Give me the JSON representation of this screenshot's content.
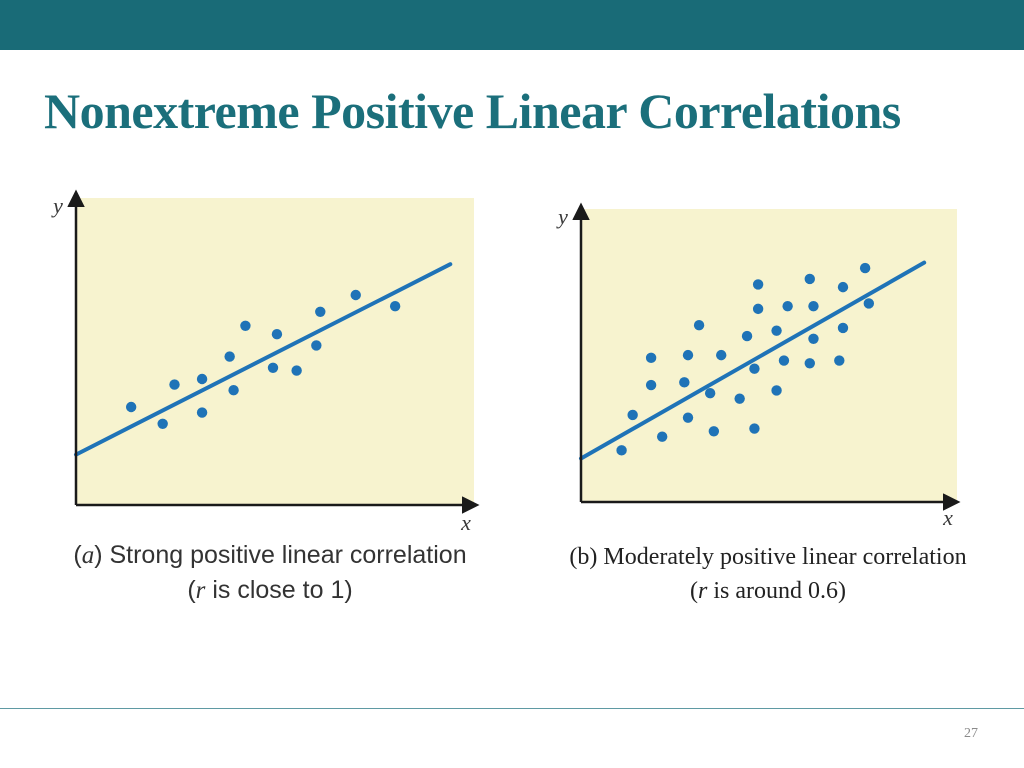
{
  "slide": {
    "title": "Nonextreme Positive Linear Correlations",
    "page_number": "27"
  },
  "colors": {
    "header_bar": "#196b77",
    "title": "#1b6f7b",
    "plot_background": "#f7f3cf",
    "marker": "#1f73b7",
    "axis": "#1a1a1a"
  },
  "chart_data": [
    {
      "type": "scatter",
      "caption": {
        "prefix": "(",
        "letter": "a",
        "mid": ") Strong positive linear correlation",
        "line2_open": "(",
        "var": "r",
        "line2_rest": " is close to 1)"
      },
      "xlabel": "x",
      "ylabel": "y",
      "xlim": [
        0,
        10
      ],
      "ylim": [
        0,
        10
      ],
      "grid": false,
      "trendline": {
        "x1": 0,
        "y1": 1.8,
        "x2": 9.5,
        "y2": 8.6
      },
      "points": [
        {
          "x": 1.4,
          "y": 3.5
        },
        {
          "x": 2.2,
          "y": 2.9
        },
        {
          "x": 2.5,
          "y": 4.3
        },
        {
          "x": 3.2,
          "y": 3.3
        },
        {
          "x": 3.2,
          "y": 4.5
        },
        {
          "x": 3.9,
          "y": 5.3
        },
        {
          "x": 4.0,
          "y": 4.1
        },
        {
          "x": 4.3,
          "y": 6.4
        },
        {
          "x": 5.0,
          "y": 4.9
        },
        {
          "x": 5.1,
          "y": 6.1
        },
        {
          "x": 5.6,
          "y": 4.8
        },
        {
          "x": 6.1,
          "y": 5.7
        },
        {
          "x": 6.2,
          "y": 6.9
        },
        {
          "x": 7.1,
          "y": 7.5
        },
        {
          "x": 8.1,
          "y": 7.1
        }
      ]
    },
    {
      "type": "scatter",
      "caption": {
        "line1": "(b) Moderately positive linear correlation",
        "line2_open": "(",
        "var": "r",
        "line2_rest": " is around 0.6)"
      },
      "xlabel": "x",
      "ylabel": "y",
      "xlim": [
        0,
        10
      ],
      "ylim": [
        0,
        10
      ],
      "grid": false,
      "trendline": {
        "x1": 0,
        "y1": 1.6,
        "x2": 9.3,
        "y2": 8.8
      },
      "points": [
        {
          "x": 1.1,
          "y": 1.9
        },
        {
          "x": 1.4,
          "y": 3.2
        },
        {
          "x": 1.9,
          "y": 4.3
        },
        {
          "x": 1.9,
          "y": 5.3
        },
        {
          "x": 2.2,
          "y": 2.4
        },
        {
          "x": 2.8,
          "y": 4.4
        },
        {
          "x": 2.9,
          "y": 3.1
        },
        {
          "x": 2.9,
          "y": 5.4
        },
        {
          "x": 3.2,
          "y": 6.5
        },
        {
          "x": 3.5,
          "y": 4.0
        },
        {
          "x": 3.6,
          "y": 2.6
        },
        {
          "x": 3.8,
          "y": 5.4
        },
        {
          "x": 4.3,
          "y": 3.8
        },
        {
          "x": 4.5,
          "y": 6.1
        },
        {
          "x": 4.7,
          "y": 2.7
        },
        {
          "x": 4.7,
          "y": 4.9
        },
        {
          "x": 4.8,
          "y": 7.1
        },
        {
          "x": 4.8,
          "y": 8.0
        },
        {
          "x": 5.3,
          "y": 4.1
        },
        {
          "x": 5.3,
          "y": 6.3
        },
        {
          "x": 5.5,
          "y": 5.2
        },
        {
          "x": 5.6,
          "y": 7.2
        },
        {
          "x": 6.2,
          "y": 5.1
        },
        {
          "x": 6.2,
          "y": 8.2
        },
        {
          "x": 6.3,
          "y": 6.0
        },
        {
          "x": 6.3,
          "y": 7.2
        },
        {
          "x": 7.0,
          "y": 5.2
        },
        {
          "x": 7.1,
          "y": 6.4
        },
        {
          "x": 7.1,
          "y": 7.9
        },
        {
          "x": 7.7,
          "y": 8.6
        },
        {
          "x": 7.8,
          "y": 7.3
        }
      ]
    }
  ]
}
